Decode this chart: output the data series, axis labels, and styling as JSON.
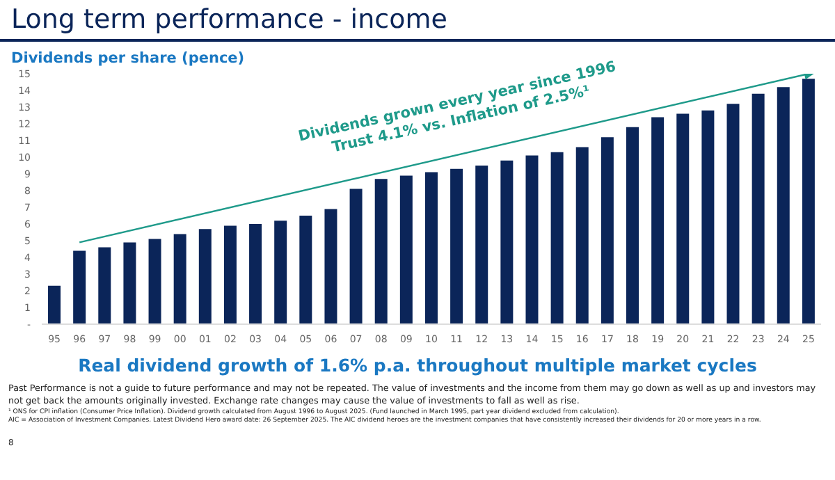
{
  "chart_data": {
    "type": "bar",
    "title": "Long term performance - income",
    "ylabel": "Dividends per share (pence)",
    "categories": [
      "95",
      "96",
      "97",
      "98",
      "99",
      "00",
      "01",
      "02",
      "03",
      "04",
      "05",
      "06",
      "07",
      "08",
      "09",
      "10",
      "11",
      "12",
      "13",
      "14",
      "15",
      "16",
      "17",
      "18",
      "19",
      "20",
      "21",
      "22",
      "23",
      "24",
      "25"
    ],
    "series": [
      {
        "color": "#0b2559",
        "values": [
          2.3,
          4.4,
          4.6,
          4.9,
          5.1,
          5.4,
          5.7,
          5.9,
          6.0,
          6.2,
          6.5,
          6.9,
          8.1,
          8.7,
          8.9,
          9.1,
          9.3,
          9.5,
          9.8,
          10.1,
          10.3,
          10.6,
          11.2,
          11.8,
          12.4,
          12.6,
          12.8,
          13.2,
          13.8,
          14.2,
          14.7
        ]
      },
      {
        "type": "line",
        "color": "#1e9a8a",
        "x": [
          "96",
          "25"
        ],
        "values": [
          4.9,
          15.0
        ]
      }
    ],
    "ylim": [
      0,
      15
    ],
    "yticks": [
      {
        "value": 0,
        "label": "-"
      },
      1,
      2,
      3,
      4,
      5,
      6,
      7,
      8,
      9,
      10,
      11,
      12,
      13,
      14,
      15
    ],
    "grid": false,
    "legend": false,
    "annotations": [
      "Dividends grown every year since 1996",
      "Trust 4.1% vs. Inflation of 2.5%¹",
      "Real dividend growth of 1.6% p.a. throughout multiple market cycles",
      "Past Performance is not a guide to future performance and may not be repeated. The value of investments and the income from them may go down as well as up and investors may not get back the amounts originally invested. Exchange rate changes may cause the value of investments to fall as well as rise.",
      "¹ ONS for CPI inflation (Consumer Price Inflation). Dividend growth calculated from August 1996 to August 2025. (Fund launched in March 1995, part year dividend excluded from calculation).",
      "AIC = Association of Investment Companies. Latest Dividend Hero award date: 26 September 2025. The AIC dividend heroes are the investment companies that have consistently increased their dividends for 20 or more years in a row.",
      "8"
    ]
  }
}
